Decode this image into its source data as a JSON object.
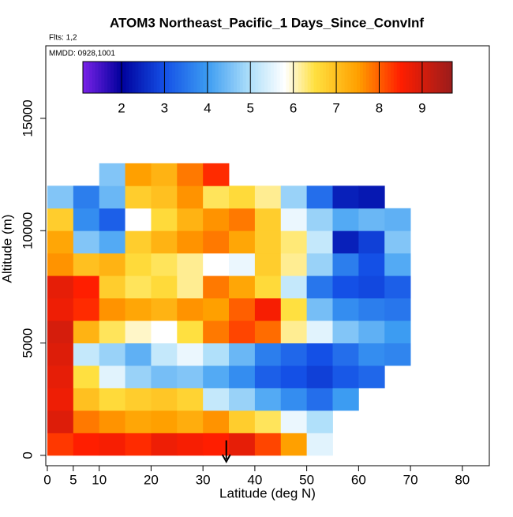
{
  "chart_data": {
    "type": "heatmap",
    "title": "ATOM3 Northeast_Pacific_1 Days_Since_ConvInf",
    "subtitle": "Flts: 1,2",
    "annotation": "MMDD: 0928,1001",
    "x_label": "Latitude (deg N)",
    "y_label": "Altitude (m)",
    "xlim": [
      -0.3,
      85.2
    ],
    "ylim": [
      -460,
      18230
    ],
    "xticks": [
      0,
      5,
      10,
      20,
      30,
      40,
      50,
      60,
      70,
      80
    ],
    "yticks": [
      0,
      5000,
      10000,
      15000
    ],
    "x_bins": [
      0,
      5,
      10,
      15,
      20,
      25,
      30,
      35,
      40,
      45,
      50,
      55,
      60,
      65,
      70,
      75
    ],
    "y_bins": [
      0,
      1000,
      2000,
      3000,
      4000,
      5000,
      6000,
      7000,
      8000,
      9000,
      10000,
      11000,
      12000,
      13000
    ],
    "z": [
      [
        8.3,
        8.5,
        8.6,
        8.4,
        8.7,
        8.6,
        8.5,
        8.8,
        8.2,
        7.5,
        5.5,
        null,
        null,
        null,
        null
      ],
      [
        8.9,
        7.8,
        7.6,
        7.4,
        7.5,
        7.3,
        7.6,
        6.8,
        6.4,
        5.6,
        5.0,
        null,
        null,
        null,
        null
      ],
      [
        8.7,
        7.0,
        6.6,
        6.8,
        6.9,
        6.7,
        5.2,
        4.8,
        4.2,
        3.8,
        3.4,
        4.0,
        null,
        null,
        null
      ],
      [
        8.8,
        6.5,
        5.5,
        4.8,
        4.5,
        4.6,
        4.2,
        3.8,
        3.2,
        3.0,
        2.8,
        3.1,
        3.3,
        null,
        null
      ],
      [
        8.9,
        5.2,
        4.8,
        4.3,
        5.2,
        5.6,
        5.0,
        4.4,
        3.6,
        3.3,
        3.0,
        3.4,
        3.8,
        3.7,
        null
      ],
      [
        9.0,
        7.2,
        6.4,
        6.0,
        5.8,
        6.5,
        7.8,
        8.2,
        7.9,
        6.2,
        5.5,
        4.6,
        4.3,
        4.0,
        null
      ],
      [
        8.7,
        8.4,
        7.6,
        7.4,
        7.2,
        7.6,
        7.5,
        8.0,
        8.6,
        6.5,
        4.5,
        3.8,
        3.6,
        3.5,
        null
      ],
      [
        8.8,
        8.5,
        6.8,
        6.4,
        6.6,
        6.2,
        7.8,
        7.4,
        6.6,
        5.2,
        3.5,
        3.0,
        2.9,
        3.2,
        null
      ],
      [
        7.6,
        7.0,
        7.2,
        6.6,
        6.4,
        6.2,
        5.8,
        5.6,
        6.8,
        6.2,
        4.8,
        3.6,
        3.0,
        4.2,
        null
      ],
      [
        7.4,
        4.6,
        4.2,
        6.8,
        7.2,
        7.6,
        7.8,
        7.4,
        6.8,
        6.3,
        5.2,
        2.4,
        2.8,
        4.6,
        null
      ],
      [
        6.8,
        3.8,
        3.2,
        5.8,
        6.6,
        7.2,
        7.6,
        7.8,
        6.8,
        5.6,
        4.8,
        4.2,
        4.4,
        4.3,
        null
      ],
      [
        4.6,
        3.6,
        4.4,
        6.8,
        7.0,
        7.6,
        6.4,
        6.6,
        6.2,
        4.8,
        3.4,
        2.4,
        2.3,
        null,
        null
      ],
      [
        null,
        null,
        4.6,
        7.5,
        7.2,
        7.8,
        8.4,
        null,
        null,
        null,
        null,
        null,
        null,
        null,
        null
      ]
    ],
    "colorbar": {
      "lim": [
        1.1,
        9.7
      ],
      "ticks": [
        2,
        3,
        4,
        5,
        6,
        7,
        8,
        9
      ],
      "color_stops": [
        {
          "value": 1.1,
          "color": "#7a22e8"
        },
        {
          "value": 2,
          "color": "#00009c"
        },
        {
          "value": 3,
          "color": "#1450e6"
        },
        {
          "value": 4,
          "color": "#3c9cf2"
        },
        {
          "value": 5,
          "color": "#b0e0fa"
        },
        {
          "value": 5.8,
          "color": "#ffffff"
        },
        {
          "value": 6.5,
          "color": "#ffe040"
        },
        {
          "value": 7.5,
          "color": "#ffa000"
        },
        {
          "value": 8.5,
          "color": "#ff1e00"
        },
        {
          "value": 9.7,
          "color": "#9a1c1c"
        }
      ]
    },
    "marker_x": 34.5
  }
}
